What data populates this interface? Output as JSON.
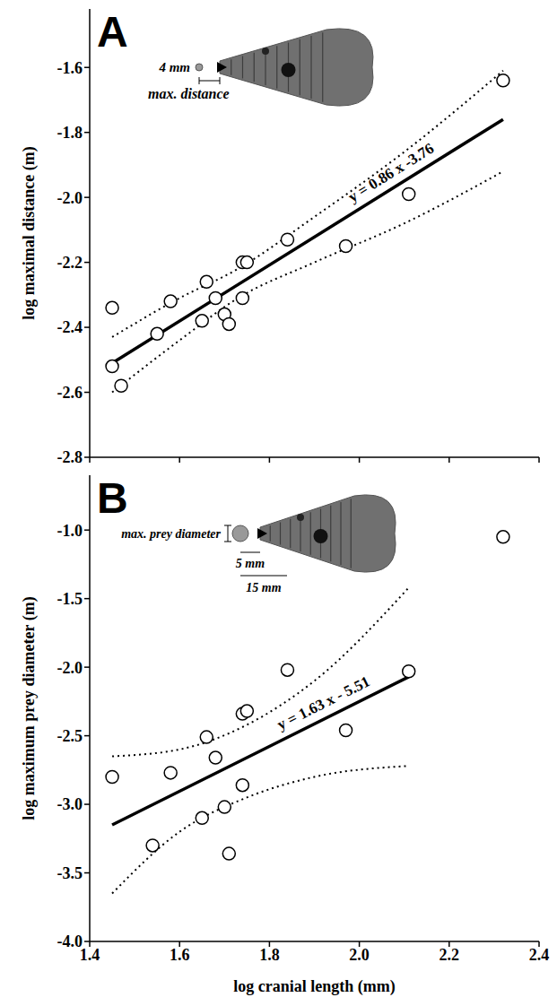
{
  "chart_data": [
    {
      "type": "scatter",
      "title": "A",
      "ylabel": "log maximal distance (m)",
      "x": [
        1.45,
        1.45,
        1.47,
        1.55,
        1.58,
        1.65,
        1.66,
        1.68,
        1.7,
        1.71,
        1.74,
        1.75,
        1.74,
        1.84,
        1.97,
        2.11,
        2.32
      ],
      "values": [
        -2.34,
        -2.52,
        -2.58,
        -2.42,
        -2.32,
        -2.38,
        -2.26,
        -2.31,
        -2.36,
        -2.39,
        -2.2,
        -2.2,
        -2.31,
        -2.13,
        -2.15,
        -1.99,
        -1.64
      ],
      "color": "#000000",
      "marker": "open_circle",
      "xlim": [
        1.4,
        2.4
      ],
      "xticks": [
        1.4,
        1.6,
        1.8,
        {
          "value": 2,
          "label": "2.0"
        },
        2.2,
        2.4
      ],
      "ylim": [
        -2.8,
        -1.42
      ],
      "yticks": [
        -2.8,
        -2.6,
        -2.4,
        -2.2,
        {
          "value": -2,
          "label": "-2.0"
        },
        -1.8,
        -1.6
      ],
      "tick_labels": "y",
      "fit": {
        "x": [
          1.45,
          2.32
        ],
        "values": [
          -2.51,
          -1.76
        ],
        "line_style": "solid"
      },
      "band": {
        "x": [
          1.45,
          1.6,
          1.73,
          1.9,
          2.1,
          2.32
        ],
        "upper": [
          -2.43,
          -2.31,
          -2.22,
          -2.06,
          -1.86,
          -1.61
        ],
        "lower": [
          -2.6,
          -2.44,
          -2.31,
          -2.2,
          -2.08,
          -1.92
        ],
        "line_style": "dotted"
      },
      "equation": "y = 0.86 x -3.76",
      "inset_texts": [
        "4 mm",
        "max. distance"
      ]
    },
    {
      "type": "scatter",
      "title": "B",
      "ylabel": "log maximum prey diameter (m)",
      "xlabel": "log cranial length (mm)",
      "x": [
        1.45,
        1.54,
        1.58,
        1.65,
        1.66,
        1.68,
        1.7,
        1.71,
        1.74,
        1.75,
        1.74,
        1.84,
        1.97,
        2.11,
        2.32
      ],
      "values": [
        -2.8,
        -3.3,
        -2.77,
        -3.1,
        -2.51,
        -2.66,
        -3.02,
        -3.36,
        -2.34,
        -2.32,
        -2.86,
        -2.02,
        -2.46,
        -2.03,
        -1.05
      ],
      "color": "#000000",
      "marker": "open_circle",
      "xlim": [
        1.4,
        2.4
      ],
      "xticks": [
        1.4,
        1.6,
        1.8,
        {
          "value": 2,
          "label": "2.0"
        },
        2.2,
        2.4
      ],
      "ylim": [
        -4.0,
        -0.6
      ],
      "yticks": [
        {
          "value": -4,
          "label": "-4.0"
        },
        -3.5,
        {
          "value": -3,
          "label": "-3.0"
        },
        -2.5,
        {
          "value": -2,
          "label": "-2.0"
        },
        -1.5,
        {
          "value": -1,
          "label": "-1.0"
        }
      ],
      "fit": {
        "x": [
          1.45,
          2.11
        ],
        "values": [
          -3.15,
          -2.07
        ],
        "line_style": "solid"
      },
      "band": {
        "x": [
          1.45,
          1.6,
          1.75,
          1.9,
          2.11
        ],
        "upper": [
          -2.65,
          -2.6,
          -2.42,
          -2.1,
          -1.42
        ],
        "lower": [
          -3.65,
          -3.2,
          -2.95,
          -2.8,
          -2.72
        ],
        "line_style": "dotted"
      },
      "equation": "y = 1.63 x - 5.51",
      "inset_texts": [
        "max. prey diameter",
        "5 mm",
        "15 mm"
      ]
    }
  ]
}
